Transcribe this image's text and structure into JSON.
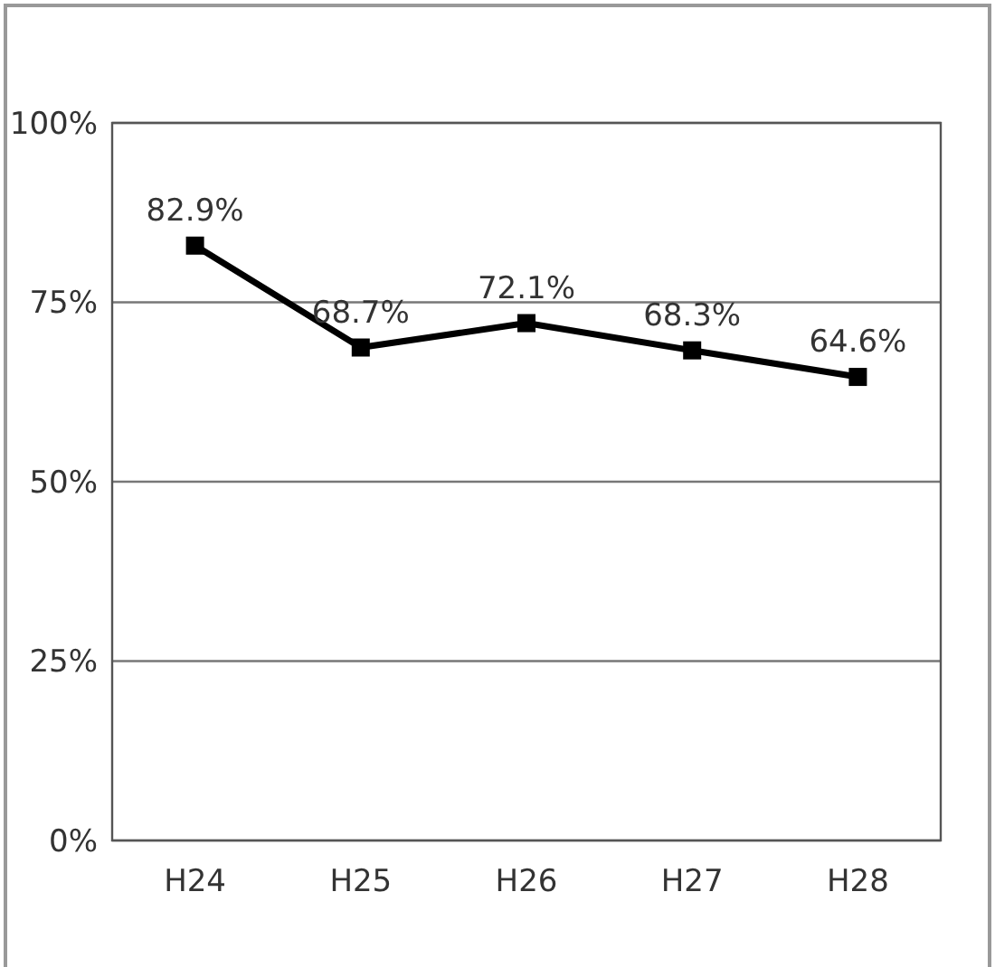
{
  "chart_data": {
    "type": "line",
    "categories": [
      "H24",
      "H25",
      "H26",
      "H27",
      "H28"
    ],
    "series": [
      {
        "color": "#000000",
        "values": [
          82.9,
          68.7,
          72.1,
          68.3,
          64.6
        ],
        "value_labels": [
          "82.9%",
          "68.7%",
          "72.1%",
          "68.3%",
          "64.6%"
        ]
      }
    ],
    "ylim": [
      0,
      100
    ],
    "yticks": [
      {
        "value": 0,
        "label": "0%"
      },
      {
        "value": 25,
        "label": "25%"
      },
      {
        "value": 50,
        "label": "50%"
      },
      {
        "value": 75,
        "label": "75%"
      },
      {
        "value": 100,
        "label": "100%"
      }
    ],
    "grid": "y",
    "marker": "square",
    "line_style": "solid"
  }
}
